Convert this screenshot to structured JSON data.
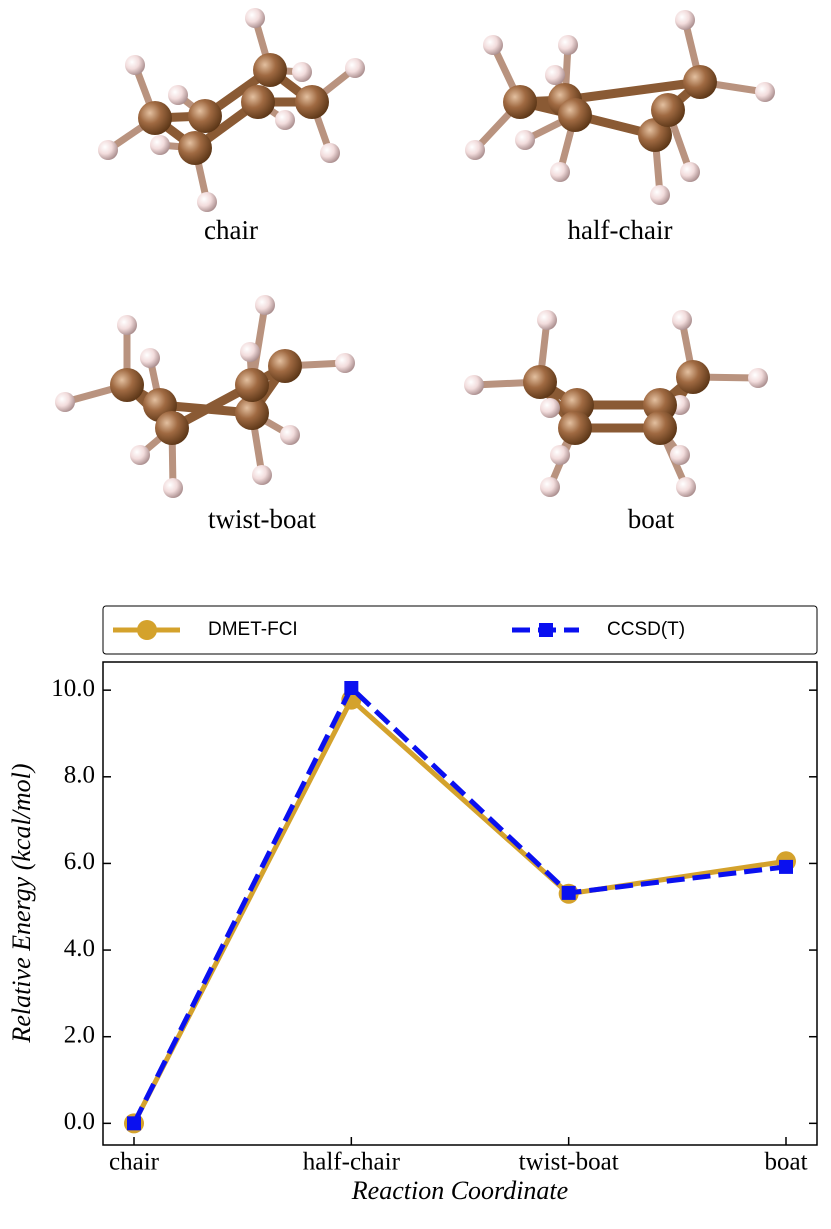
{
  "panels": [
    {
      "label": "chair"
    },
    {
      "label": "half-chair"
    },
    {
      "label": "twist-boat"
    },
    {
      "label": "boat"
    }
  ],
  "chart_data": {
    "type": "line",
    "xlabel": "Reaction Coordinate",
    "ylabel": "Relative Energy (kcal/mol)",
    "categories": [
      "chair",
      "half-chair",
      "twist-boat",
      "boat"
    ],
    "series": [
      {
        "name": "DMET-FCI",
        "color": "#d4a22c",
        "linestyle": "solid",
        "marker": "circle",
        "values": [
          0,
          9.78,
          5.3,
          6.05
        ]
      },
      {
        "name": "CCSD(T)",
        "color": "#0a10f0",
        "linestyle": "dashed",
        "marker": "square",
        "values": [
          0,
          10.05,
          5.32,
          5.92
        ]
      }
    ],
    "ylim": [
      -0.5,
      10.65
    ],
    "yticks": [
      {
        "value": 0,
        "label": "0.0"
      },
      {
        "value": 2,
        "label": "2.0"
      },
      {
        "value": 4,
        "label": "4.0"
      },
      {
        "value": 6,
        "label": "6.0"
      },
      {
        "value": 8,
        "label": "8.0"
      },
      {
        "value": 10,
        "label": "10.0"
      }
    ],
    "legend": "top",
    "grid": false
  }
}
